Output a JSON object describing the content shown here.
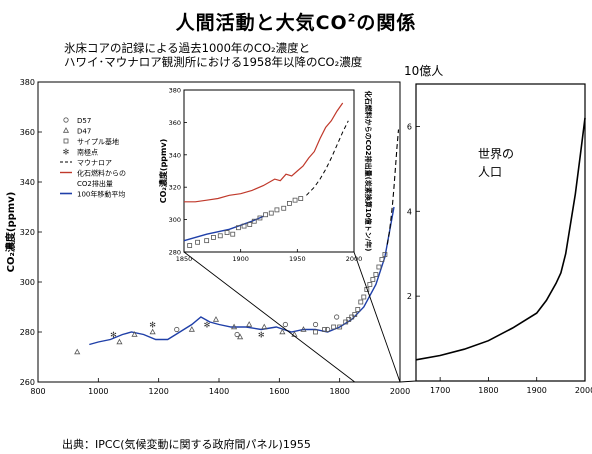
{
  "page": {
    "title_main": "人間活動と大気CO",
    "title_sup": "2",
    "title_end": "の関係",
    "subtitle_line1": "氷床コアの記録による過去1000年のCO₂濃度と",
    "subtitle_line2": "ハワイ･マウナロア観測所における1958年以降のCO₂濃度",
    "source": "出典：IPCC(気候変動に関する政府間パネル)1955",
    "population_label": "10億人"
  },
  "chart_data": [
    {
      "id": "main",
      "type": "scatter",
      "ylabel": "CO₂濃度(ppmv)",
      "xlim": [
        800,
        2000
      ],
      "ylim": [
        260,
        380
      ],
      "xticks": [
        800,
        1000,
        1200,
        1400,
        1600,
        1800,
        2000
      ],
      "yticks": [
        260,
        280,
        300,
        320,
        340,
        360,
        380
      ],
      "legend": {
        "placement": "top-left",
        "entries": [
          {
            "symbol": "circle",
            "label": "D57"
          },
          {
            "symbol": "triangle",
            "label": "D47"
          },
          {
            "symbol": "square",
            "label": "サイプル基地"
          },
          {
            "symbol": "asterisk",
            "label": "南極点"
          },
          {
            "symbol": "dash",
            "label": "マウナロア"
          },
          {
            "symbol": "red-line",
            "label": "化石燃料からの"
          },
          {
            "symbol": "none",
            "label": "CO2排出量"
          },
          {
            "symbol": "blue-line",
            "label": "100年移動平均"
          }
        ]
      },
      "series": [
        {
          "name": "100年移動平均",
          "color": "#1f3fa8",
          "x": [
            970,
            1000,
            1040,
            1080,
            1110,
            1150,
            1190,
            1230,
            1270,
            1310,
            1340,
            1370,
            1400,
            1440,
            1490,
            1540,
            1590,
            1640,
            1680,
            1720,
            1760,
            1800,
            1840,
            1880,
            1920,
            1950,
            1980
          ],
          "y": [
            275,
            276,
            277,
            279,
            280,
            279,
            277,
            277,
            280,
            283,
            286,
            284,
            283,
            282,
            282,
            281,
            282,
            280,
            281,
            281,
            280,
            282,
            285,
            290,
            299,
            310,
            330
          ]
        },
        {
          "name": "マウナロア",
          "color": "#000000",
          "x": [
            1958,
            1965,
            1970,
            1975,
            1980,
            1985,
            1990,
            1995
          ],
          "y": [
            315,
            320,
            325,
            331,
            338,
            346,
            354,
            361
          ]
        },
        {
          "name": "D47",
          "marker": "triangle",
          "x": [
            930,
            1070,
            1120,
            1180,
            1310,
            1390,
            1450,
            1470,
            1500,
            1550,
            1610,
            1650,
            1680
          ],
          "y": [
            272,
            276,
            279,
            280,
            281,
            285,
            282,
            278,
            283,
            282,
            280,
            279,
            281
          ]
        },
        {
          "name": "D57",
          "marker": "circle",
          "x": [
            1260,
            1460,
            1620,
            1720,
            1760,
            1790
          ],
          "y": [
            281,
            279,
            283,
            283,
            281,
            286
          ]
        },
        {
          "name": "サイプル基地",
          "marker": "square",
          "x": [
            1720,
            1750,
            1780,
            1800,
            1820,
            1830,
            1840,
            1850,
            1860,
            1870,
            1880,
            1890,
            1900,
            1910,
            1920,
            1930,
            1940,
            1950
          ],
          "y": [
            280,
            281,
            282,
            282,
            284,
            285,
            286,
            287,
            289,
            292,
            294,
            297,
            299,
            301,
            303,
            306,
            309,
            311
          ]
        },
        {
          "name": "南極点",
          "marker": "asterisk",
          "x": [
            1050,
            1180,
            1360,
            1540
          ],
          "y": [
            279,
            283,
            283,
            279
          ]
        }
      ]
    },
    {
      "id": "inset",
      "type": "line",
      "ylabel": "CO₂濃度(ppmv)",
      "y2label": "化石燃料からのCO2排出量(炭素換算10億トン/年)",
      "xlim": [
        1850,
        2000
      ],
      "ylim": [
        280,
        380
      ],
      "xticks": [
        1850,
        1900,
        1950,
        2000
      ],
      "yticks": [
        280,
        300,
        320,
        340,
        360,
        380
      ],
      "series": [
        {
          "name": "化石燃料からの CO2排出量",
          "color": "#c0392b",
          "x": [
            1850,
            1860,
            1870,
            1880,
            1890,
            1900,
            1910,
            1920,
            1930,
            1935,
            1940,
            1945,
            1950,
            1955,
            1960,
            1965,
            1970,
            1975,
            1980,
            1985,
            1990
          ],
          "y": [
            311,
            311,
            312,
            313,
            315,
            316,
            318,
            321,
            325,
            324,
            328,
            327,
            330,
            333,
            338,
            342,
            350,
            357,
            361,
            367,
            372
          ]
        },
        {
          "name": "100年移動平均",
          "color": "#1f3fa8",
          "x": [
            1850,
            1870,
            1890,
            1910,
            1920
          ],
          "y": [
            287,
            291,
            294,
            299,
            302
          ]
        },
        {
          "name": "マウナロア",
          "color": "#000000",
          "x": [
            1958,
            1965,
            1970,
            1975,
            1980,
            1985,
            1990,
            1995
          ],
          "y": [
            315,
            320,
            325,
            331,
            338,
            346,
            354,
            361
          ]
        },
        {
          "name": "サイプル基地",
          "marker": "square",
          "x": [
            1855,
            1862,
            1870,
            1876,
            1882,
            1888,
            1893,
            1898,
            1903,
            1908,
            1912,
            1917,
            1922,
            1927,
            1932,
            1938,
            1943,
            1948,
            1953
          ],
          "y": [
            284,
            286,
            287,
            289,
            290,
            292,
            291,
            295,
            296,
            297,
            299,
            301,
            303,
            304,
            306,
            307,
            310,
            312,
            313
          ]
        }
      ]
    },
    {
      "id": "population",
      "type": "line",
      "annotation": "世界の人口",
      "xlim": [
        1650,
        2000
      ],
      "ylim": [
        0,
        7
      ],
      "xticks": [
        1700,
        1800,
        1900,
        2000
      ],
      "yticks": [
        2,
        4,
        6
      ],
      "series": [
        {
          "name": "世界の人口",
          "color": "#000000",
          "x": [
            1650,
            1700,
            1750,
            1800,
            1850,
            1900,
            1920,
            1940,
            1950,
            1960,
            1970,
            1980,
            1990,
            2000
          ],
          "y": [
            0.5,
            0.6,
            0.75,
            0.95,
            1.25,
            1.6,
            1.9,
            2.3,
            2.55,
            3.0,
            3.7,
            4.4,
            5.3,
            6.2
          ]
        }
      ]
    }
  ]
}
